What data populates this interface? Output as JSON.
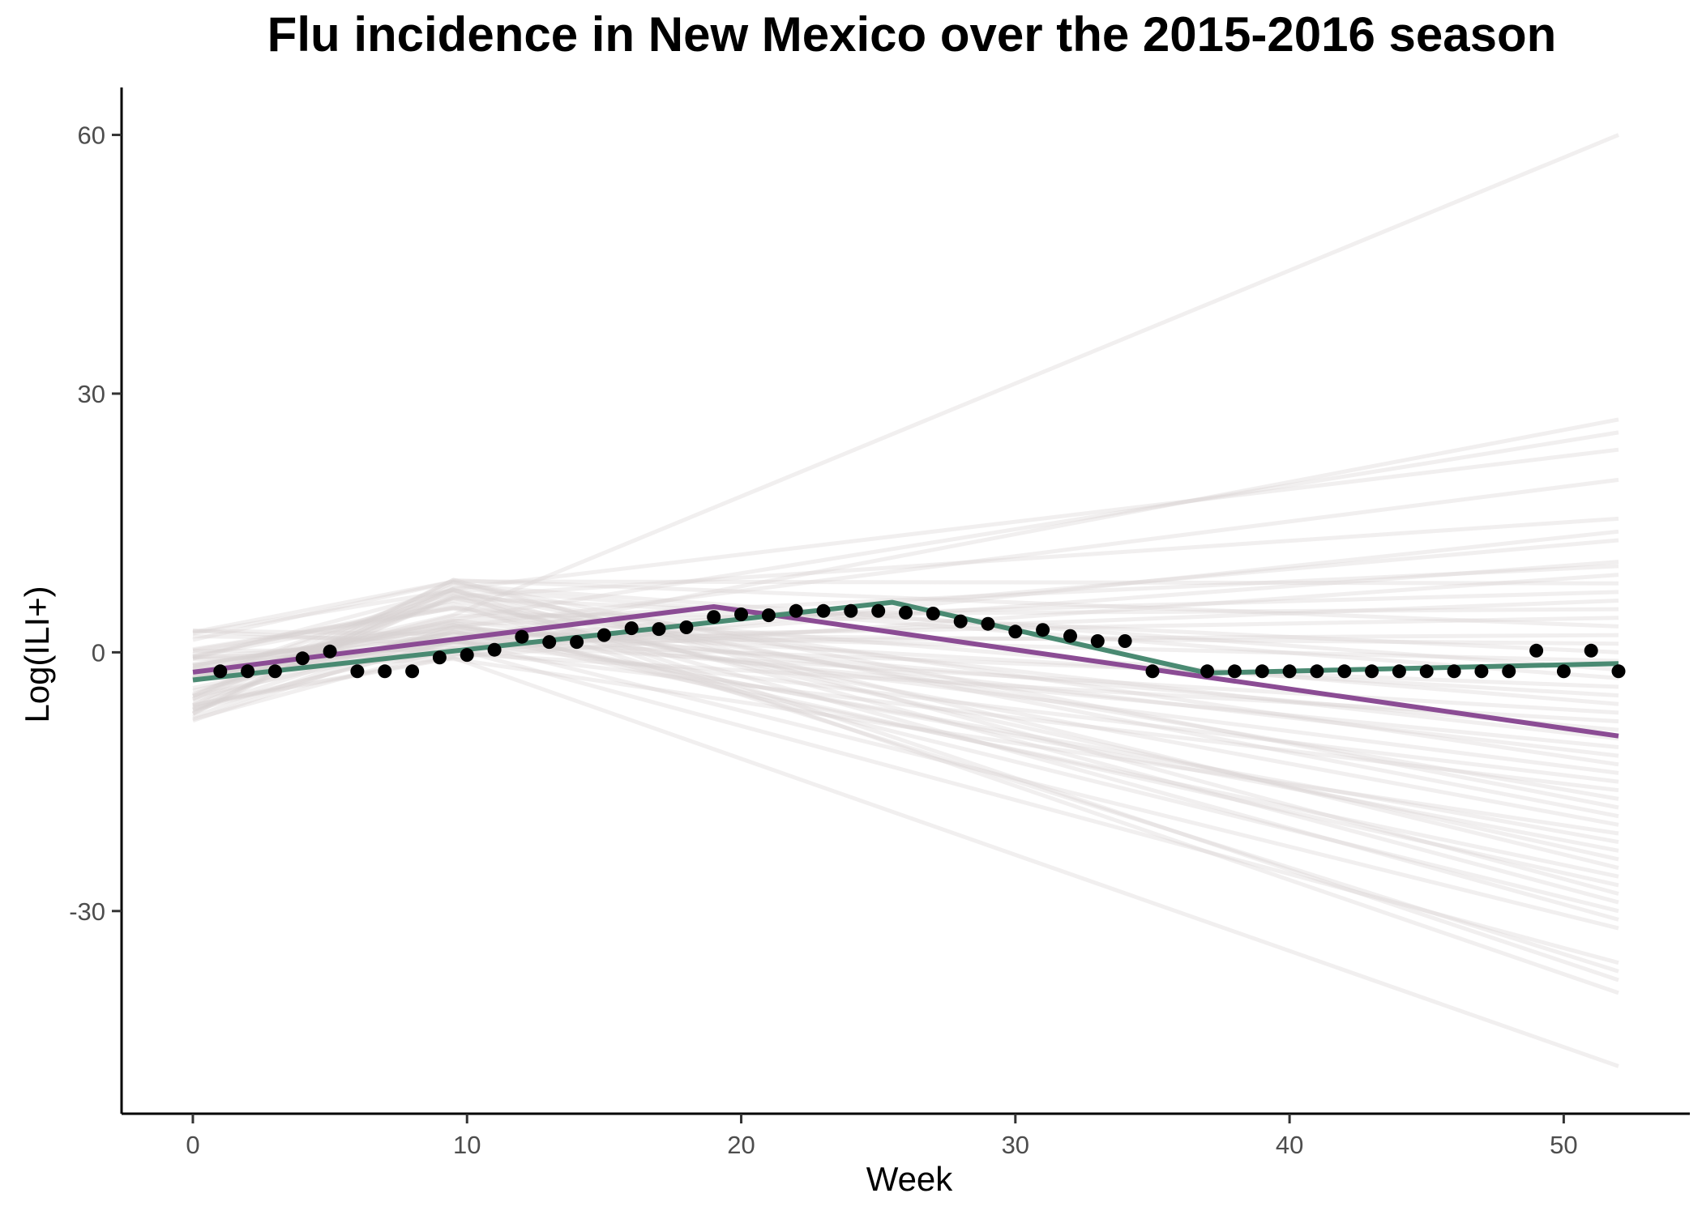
{
  "chart_data": {
    "type": "line",
    "title": "Flu incidence in New Mexico over the 2015-2016 season",
    "xlabel": "Week",
    "ylabel": "Log(ILI+)",
    "xlim": [
      -2.6,
      54.6
    ],
    "ylim": [
      -53.5,
      65.5
    ],
    "x_ticks": [
      0,
      10,
      20,
      30,
      40,
      50
    ],
    "y_ticks": [
      -30,
      0,
      30,
      60
    ],
    "y_tick_labels": [
      "-30",
      "0",
      "30",
      "60"
    ],
    "grid": false,
    "legend": "none",
    "series": [
      {
        "kind": "points",
        "color": "#000000",
        "x": [
          1,
          2,
          3,
          4,
          5,
          6,
          7,
          8,
          9,
          10,
          11,
          12,
          13,
          14,
          15,
          16,
          17,
          18,
          19,
          20,
          21,
          22,
          23,
          24,
          25,
          26,
          27,
          28,
          29,
          30,
          31,
          32,
          33,
          34,
          35,
          37,
          38,
          39,
          40,
          41,
          42,
          43,
          44,
          45,
          46,
          47,
          48,
          49,
          50,
          51,
          52
        ],
        "y": [
          -2.2,
          -2.2,
          -2.2,
          -0.7,
          0.1,
          -2.2,
          -2.2,
          -2.2,
          -0.6,
          -0.3,
          0.3,
          1.8,
          1.2,
          1.2,
          2.0,
          2.8,
          2.7,
          2.9,
          4.1,
          4.4,
          4.3,
          4.8,
          4.8,
          4.8,
          4.8,
          4.6,
          4.5,
          3.6,
          3.3,
          2.4,
          2.6,
          1.9,
          1.3,
          1.3,
          -2.2,
          -2.2,
          -2.2,
          -2.2,
          -2.2,
          -2.2,
          -2.2,
          -2.2,
          -2.2,
          -2.2,
          -2.2,
          -2.2,
          -2.2,
          0.2,
          -2.2,
          0.2,
          -2.2
        ]
      },
      {
        "kind": "line",
        "color": "#8B4C94",
        "x": [
          0,
          19,
          52
        ],
        "y": [
          -2.3,
          5.3,
          -9.7
        ]
      },
      {
        "kind": "line",
        "color": "#4A8A72",
        "x": [
          0,
          19,
          25.5,
          37,
          52
        ],
        "y": [
          -3.2,
          3.5,
          5.8,
          -2.4,
          -1.3
        ]
      }
    ],
    "background_lines": {
      "color": "#D7D0D0",
      "x": [
        0,
        9.5,
        52
      ],
      "y_start_range": [
        -8,
        3
      ],
      "y_mid_range": [
        -1,
        8.5
      ],
      "y_end_values": [
        60,
        27,
        25.5,
        23.5,
        20,
        15.5,
        14,
        13,
        10.5,
        10,
        9,
        8,
        7,
        6,
        5,
        4,
        3,
        2,
        1,
        0,
        -1,
        -2,
        -3,
        -4,
        -5,
        -6,
        -7,
        -8,
        -9,
        -10,
        -11,
        -12,
        -13,
        -14,
        -15,
        -16,
        -17,
        -18,
        -19,
        -20,
        -21,
        -22,
        -23,
        -24,
        -25,
        -26,
        -27,
        -28,
        -29,
        -30,
        -31,
        -32,
        -36,
        -37,
        -38,
        -39.5,
        -48
      ]
    }
  }
}
